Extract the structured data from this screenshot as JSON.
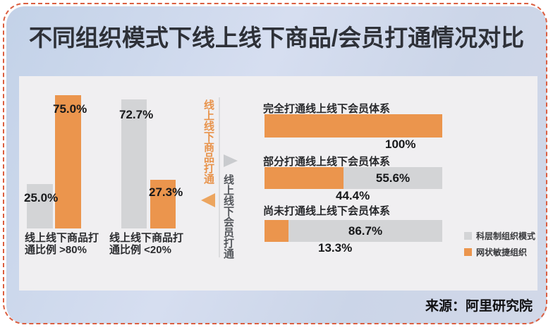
{
  "page": {
    "title": "不同组织模式下线上线下商品/会员打通情况对比",
    "source": "来源：阿里研究院"
  },
  "colors": {
    "agile_orange": "#EB954D",
    "hierarchy_gray": "#D3D4D6",
    "dashed_border": "#DB5F41",
    "panel_blue": "#CBD5E8",
    "chart_background": "#F0EFF1",
    "axis_orange_text": "#E8934B",
    "axis_gray_text": "#54575C"
  },
  "legend": {
    "items": [
      {
        "label": "科层制组织模式",
        "color": "#D3D4D6"
      },
      {
        "label": "网状敏捷组织",
        "color": "#EB954D"
      }
    ]
  },
  "middle_axis": {
    "product_label": "线上线下商品打通",
    "member_label": "线上线下会员打通"
  },
  "chart_data": [
    {
      "type": "bar",
      "title": "线上线下商品打通",
      "orientation": "vertical-grouped",
      "series_names": [
        "科层制组织模式",
        "网状敏捷组织"
      ],
      "unit": "%",
      "ylim": [
        0,
        80
      ],
      "grid": false,
      "axis_hidden": true,
      "groups": [
        {
          "category": "线上线下商品打通比例 >80%",
          "category_line1": "线上线下商品打",
          "category_line2": "通比例 >80%",
          "values": [
            25.0,
            75.0
          ],
          "labels": [
            "25.0%",
            "75.0%"
          ]
        },
        {
          "category": "线上线下商品打通比例 <20%",
          "category_line1": "线上线下商品打",
          "category_line2": "通比例 <20%",
          "values": [
            72.7,
            27.3
          ],
          "labels": [
            "72.7%",
            "27.3%"
          ]
        }
      ]
    },
    {
      "type": "bar",
      "title": "线上线下会员打通",
      "orientation": "horizontal-stacked",
      "series_names": [
        "网状敏捷组织",
        "科层制组织模式"
      ],
      "unit": "%",
      "xlim": [
        0,
        100
      ],
      "grid": false,
      "axis_hidden": true,
      "rows": [
        {
          "category": "完全打通线上线下会员体系",
          "agile_value": 100.0,
          "hierarchy_value": 0.0,
          "agile_label": "100%",
          "hierarchy_label": ""
        },
        {
          "category": "部分打通线上线下会员体系",
          "agile_value": 44.4,
          "hierarchy_value": 55.6,
          "agile_label": "44.4%",
          "hierarchy_label": "55.6%"
        },
        {
          "category": "尚未打通线上线下会员体系",
          "agile_value": 13.3,
          "hierarchy_value": 86.7,
          "agile_label": "13.3%",
          "hierarchy_label": "86.7%"
        }
      ]
    }
  ]
}
